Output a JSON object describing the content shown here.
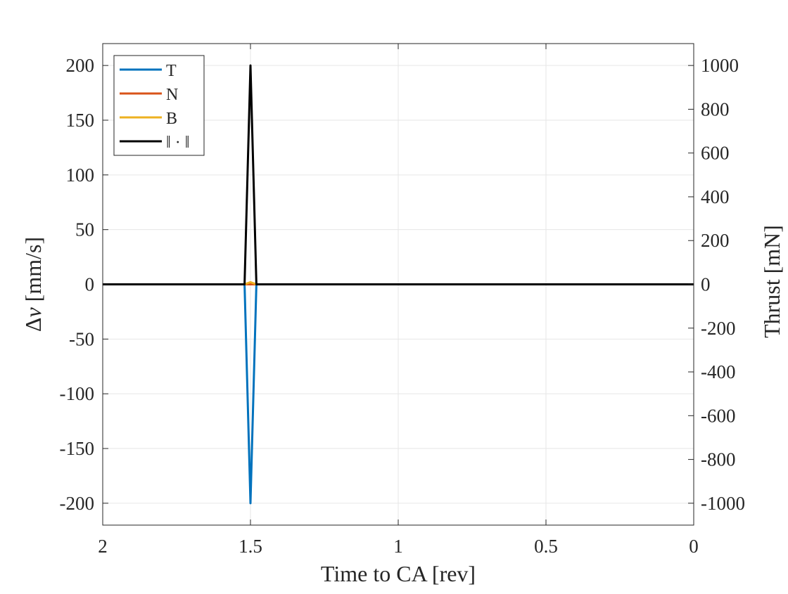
{
  "chart_data": {
    "type": "line",
    "xlabel": "Time to CA [rev]",
    "ylabel_left": "Δv [mm/s]",
    "ylabel_left_symbol": "Δ",
    "ylabel_left_var": "v",
    "ylabel_left_unit": "[mm/s]",
    "ylabel_right": "Thrust [mN]",
    "xlim": [
      2,
      0
    ],
    "x_reversed": true,
    "ylim_left": [
      -220,
      220
    ],
    "ylim_right": [
      -1100,
      1100
    ],
    "x_ticks": [
      2,
      1.5,
      1,
      0.5,
      0
    ],
    "x_tick_labels": [
      "2",
      "1.5",
      "1",
      "0.5",
      "0"
    ],
    "y_left_ticks": [
      200,
      150,
      100,
      50,
      0,
      -50,
      -100,
      -150,
      -200
    ],
    "y_left_tick_labels": [
      "200",
      "150",
      "100",
      "50",
      "0",
      "-50",
      "-100",
      "-150",
      "-200"
    ],
    "y_right_ticks": [
      1000,
      800,
      600,
      400,
      200,
      0,
      -200,
      -400,
      -600,
      -800,
      -1000
    ],
    "y_right_tick_labels": [
      "1000",
      "800",
      "600",
      "400",
      "200",
      "0",
      "-200",
      "-400",
      "-600",
      "-800",
      "-1000"
    ],
    "grid": true,
    "legend_position": "top-left",
    "series": [
      {
        "name": "T",
        "color": "#0072BD",
        "x": [
          2,
          1.52,
          1.5,
          1.48,
          0
        ],
        "y": [
          0,
          0,
          -200,
          0,
          0
        ]
      },
      {
        "name": "N",
        "color": "#D95319",
        "x": [
          2,
          1.52,
          1.5,
          1.48,
          0
        ],
        "y": [
          0,
          0,
          0,
          0,
          0
        ]
      },
      {
        "name": "B",
        "color": "#EDB120",
        "x": [
          2,
          1.52,
          1.5,
          1.48,
          0
        ],
        "y": [
          0,
          0,
          2,
          0,
          0
        ]
      },
      {
        "name": "‖ · ‖",
        "color": "#000000",
        "x": [
          2,
          1.52,
          1.5,
          1.48,
          0
        ],
        "y": [
          0,
          0,
          200,
          0,
          0
        ]
      }
    ]
  }
}
